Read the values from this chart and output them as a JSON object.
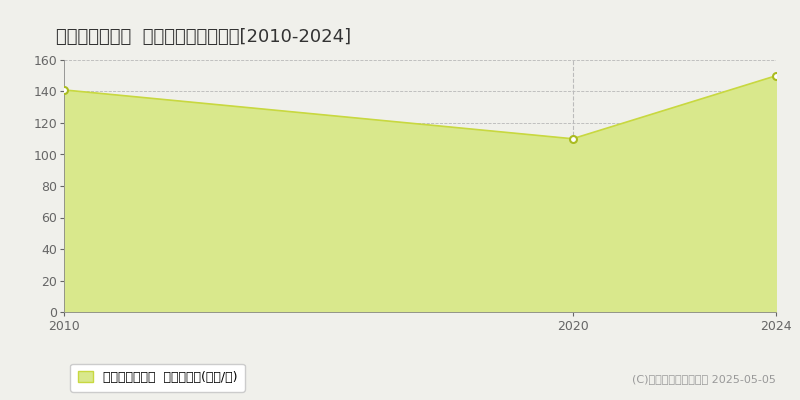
{
  "title": "明石市大蔵中町  マンション価格推移[2010-2024]",
  "years": [
    2010,
    2020,
    2024
  ],
  "values": [
    141,
    110,
    150
  ],
  "line_color": "#c8d840",
  "fill_color": "#d9e88c",
  "fill_alpha": 1.0,
  "marker_color": "#ffffff",
  "marker_edge_color": "#aabb20",
  "background_color": "#f0f0eb",
  "plot_bg_color": "#f0f0eb",
  "grid_color": "#b8b8b8",
  "ylim": [
    0,
    160
  ],
  "yticks": [
    0,
    20,
    40,
    60,
    80,
    100,
    120,
    140,
    160
  ],
  "xlim": [
    2010,
    2024
  ],
  "xticks": [
    2010,
    2020,
    2024
  ],
  "legend_label": "マンション価格  平均坪単価(万円/坪)",
  "copyright_text": "(C)土地価格ドットコム 2025-05-05",
  "title_fontsize": 13,
  "axis_fontsize": 9,
  "legend_fontsize": 9,
  "copyright_fontsize": 8,
  "vline_x": 2020,
  "vline_color": "#bbbbbb",
  "vline_style": "--"
}
